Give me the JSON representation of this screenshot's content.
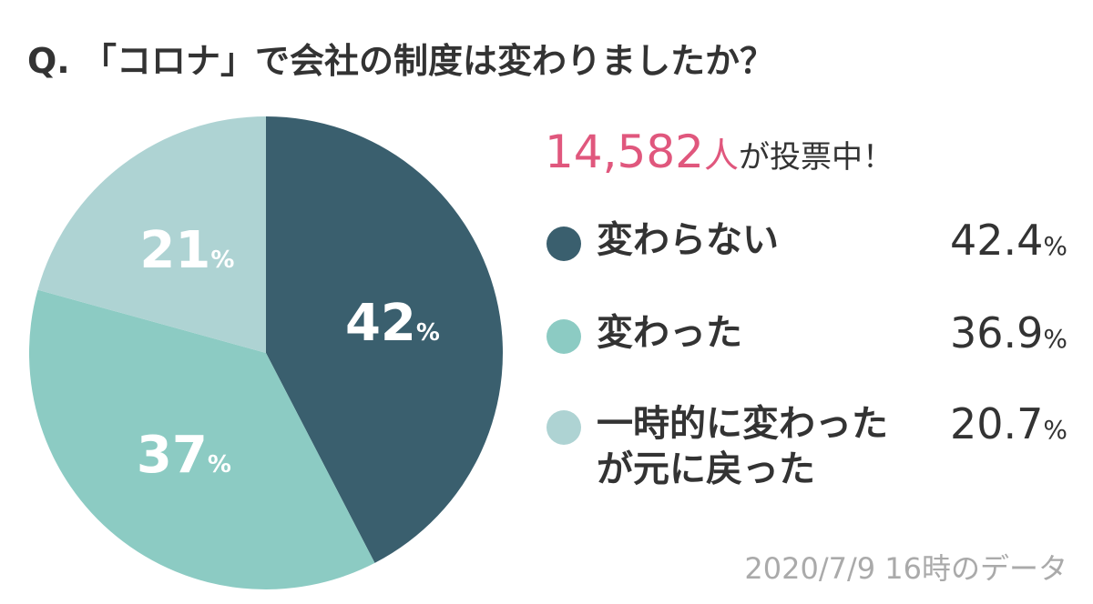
{
  "chart_data": {
    "type": "pie",
    "title": "Q. 「コロナ」で会社の制度は変わりましたか？",
    "votes": {
      "count": "14,582",
      "unit": "人",
      "text": "が投票中！"
    },
    "categories": [
      "変わらない",
      "変わった",
      "一時的に変わったが元に戻った"
    ],
    "values": [
      42.4,
      36.9,
      20.7
    ],
    "value_labels": [
      "42%",
      "37%",
      "21%"
    ],
    "legend_labels": [
      "42.4%",
      "36.9%",
      "20.7%"
    ],
    "colors": [
      "#3a5f6e",
      "#8ccbc3",
      "#aed3d3"
    ],
    "note": "2020/7/9 16時のデータ"
  }
}
